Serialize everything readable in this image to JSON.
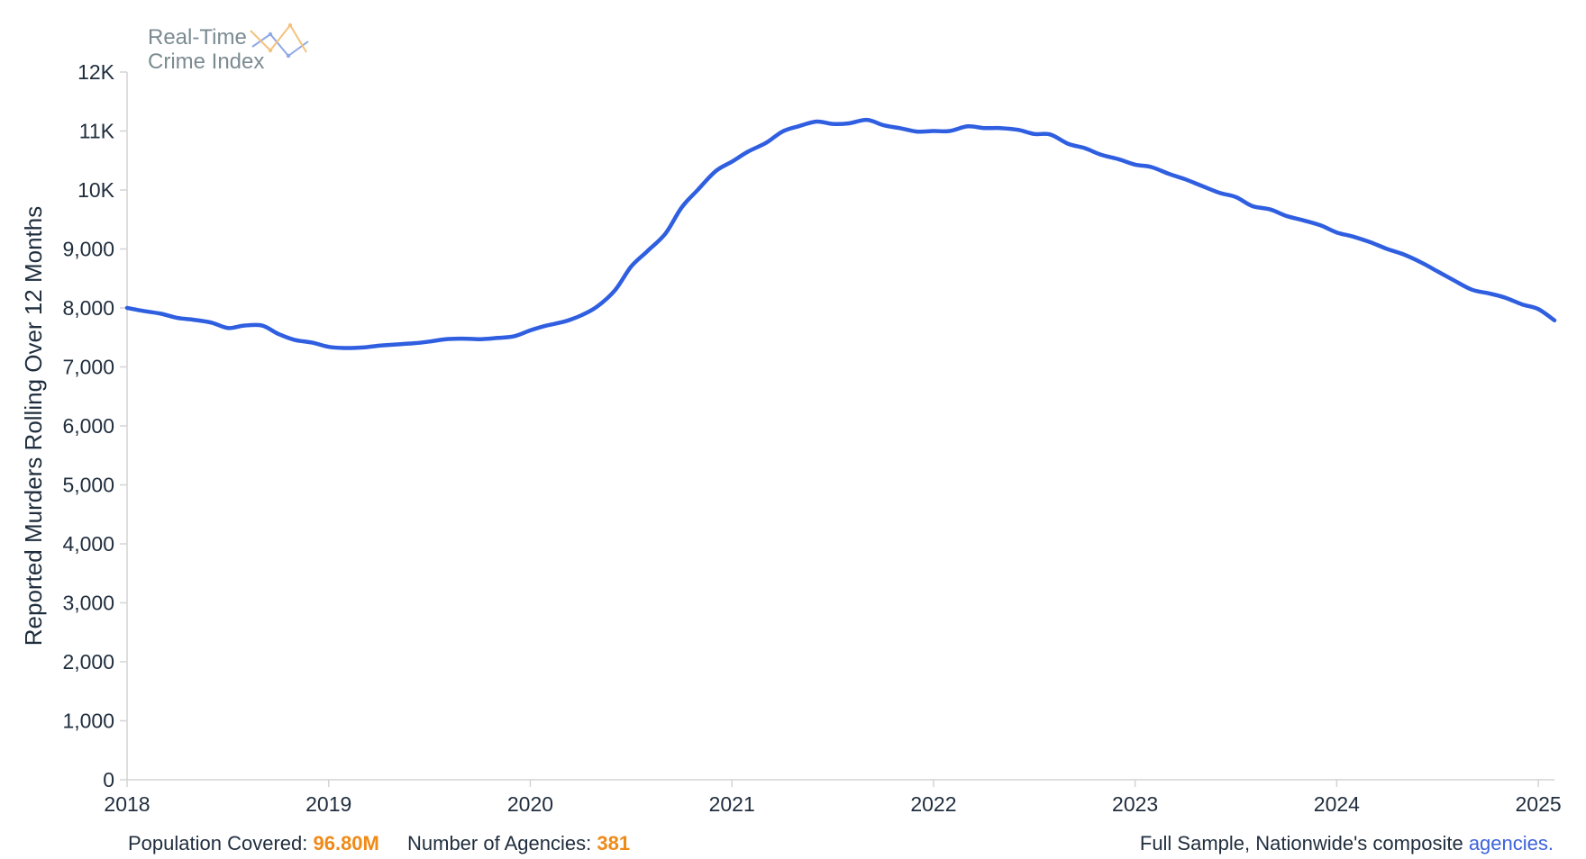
{
  "logo": {
    "line1": "Real-Time",
    "line2": "Crime Index"
  },
  "footer": {
    "population_label": "Population Covered:",
    "population_value": "96.80M",
    "agencies_label": "Number of Agencies:",
    "agencies_value": "381",
    "sample_text": "Full Sample, Nationwide's composite",
    "sample_link": "agencies."
  },
  "colors": {
    "line": "#2f5fe0",
    "highlight": "#f08a17",
    "link": "#3d63dc"
  },
  "chart_data": {
    "type": "line",
    "ylabel": "Reported Murders Rolling Over 12 Months",
    "xlabel": "",
    "ylim": [
      0,
      12000
    ],
    "y_ticks": [
      {
        "value": 0,
        "label": "0"
      },
      {
        "value": 1000,
        "label": "1,000"
      },
      {
        "value": 2000,
        "label": "2,000"
      },
      {
        "value": 3000,
        "label": "3,000"
      },
      {
        "value": 4000,
        "label": "4,000"
      },
      {
        "value": 5000,
        "label": "5,000"
      },
      {
        "value": 6000,
        "label": "6,000"
      },
      {
        "value": 7000,
        "label": "7,000"
      },
      {
        "value": 8000,
        "label": "8,000"
      },
      {
        "value": 9000,
        "label": "9,000"
      },
      {
        "value": 10000,
        "label": "10K"
      },
      {
        "value": 11000,
        "label": "11K"
      },
      {
        "value": 12000,
        "label": "12K"
      }
    ],
    "xlim": [
      2018.0,
      2025.08
    ],
    "x_ticks": [
      {
        "value": 2018,
        "label": "2018"
      },
      {
        "value": 2019,
        "label": "2019"
      },
      {
        "value": 2020,
        "label": "2020"
      },
      {
        "value": 2021,
        "label": "2021"
      },
      {
        "value": 2022,
        "label": "2022"
      },
      {
        "value": 2023,
        "label": "2023"
      },
      {
        "value": 2024,
        "label": "2024"
      },
      {
        "value": 2025,
        "label": "2025"
      }
    ],
    "grid": false,
    "series": [
      {
        "color": "#2f5fe0",
        "points": [
          [
            2018.0,
            8000
          ],
          [
            2018.08,
            7950
          ],
          [
            2018.17,
            7900
          ],
          [
            2018.25,
            7830
          ],
          [
            2018.33,
            7800
          ],
          [
            2018.42,
            7750
          ],
          [
            2018.5,
            7660
          ],
          [
            2018.58,
            7700
          ],
          [
            2018.67,
            7700
          ],
          [
            2018.75,
            7560
          ],
          [
            2018.83,
            7460
          ],
          [
            2018.92,
            7410
          ],
          [
            2019.0,
            7340
          ],
          [
            2019.08,
            7320
          ],
          [
            2019.17,
            7330
          ],
          [
            2019.25,
            7360
          ],
          [
            2019.33,
            7380
          ],
          [
            2019.42,
            7400
          ],
          [
            2019.5,
            7430
          ],
          [
            2019.58,
            7470
          ],
          [
            2019.67,
            7480
          ],
          [
            2019.75,
            7470
          ],
          [
            2019.83,
            7490
          ],
          [
            2019.92,
            7520
          ],
          [
            2020.0,
            7620
          ],
          [
            2020.08,
            7700
          ],
          [
            2020.17,
            7770
          ],
          [
            2020.25,
            7870
          ],
          [
            2020.33,
            8020
          ],
          [
            2020.42,
            8300
          ],
          [
            2020.5,
            8700
          ],
          [
            2020.58,
            8960
          ],
          [
            2020.67,
            9260
          ],
          [
            2020.75,
            9700
          ],
          [
            2020.83,
            10000
          ],
          [
            2020.92,
            10320
          ],
          [
            2021.0,
            10480
          ],
          [
            2021.08,
            10650
          ],
          [
            2021.17,
            10800
          ],
          [
            2021.25,
            10990
          ],
          [
            2021.33,
            11080
          ],
          [
            2021.42,
            11160
          ],
          [
            2021.5,
            11120
          ],
          [
            2021.58,
            11130
          ],
          [
            2021.67,
            11190
          ],
          [
            2021.75,
            11100
          ],
          [
            2021.83,
            11050
          ],
          [
            2021.92,
            10990
          ],
          [
            2022.0,
            11000
          ],
          [
            2022.08,
            11000
          ],
          [
            2022.17,
            11080
          ],
          [
            2022.25,
            11050
          ],
          [
            2022.33,
            11050
          ],
          [
            2022.42,
            11020
          ],
          [
            2022.5,
            10950
          ],
          [
            2022.58,
            10940
          ],
          [
            2022.67,
            10780
          ],
          [
            2022.75,
            10710
          ],
          [
            2022.83,
            10600
          ],
          [
            2022.92,
            10520
          ],
          [
            2023.0,
            10430
          ],
          [
            2023.08,
            10390
          ],
          [
            2023.17,
            10270
          ],
          [
            2023.25,
            10180
          ],
          [
            2023.33,
            10070
          ],
          [
            2023.42,
            9950
          ],
          [
            2023.5,
            9880
          ],
          [
            2023.58,
            9730
          ],
          [
            2023.67,
            9670
          ],
          [
            2023.75,
            9560
          ],
          [
            2023.83,
            9490
          ],
          [
            2023.92,
            9400
          ],
          [
            2024.0,
            9280
          ],
          [
            2024.08,
            9210
          ],
          [
            2024.17,
            9110
          ],
          [
            2024.25,
            9000
          ],
          [
            2024.33,
            8910
          ],
          [
            2024.42,
            8770
          ],
          [
            2024.5,
            8620
          ],
          [
            2024.58,
            8470
          ],
          [
            2024.67,
            8310
          ],
          [
            2024.75,
            8250
          ],
          [
            2024.83,
            8180
          ],
          [
            2024.92,
            8060
          ],
          [
            2025.0,
            7980
          ],
          [
            2025.08,
            7790
          ]
        ]
      }
    ]
  }
}
